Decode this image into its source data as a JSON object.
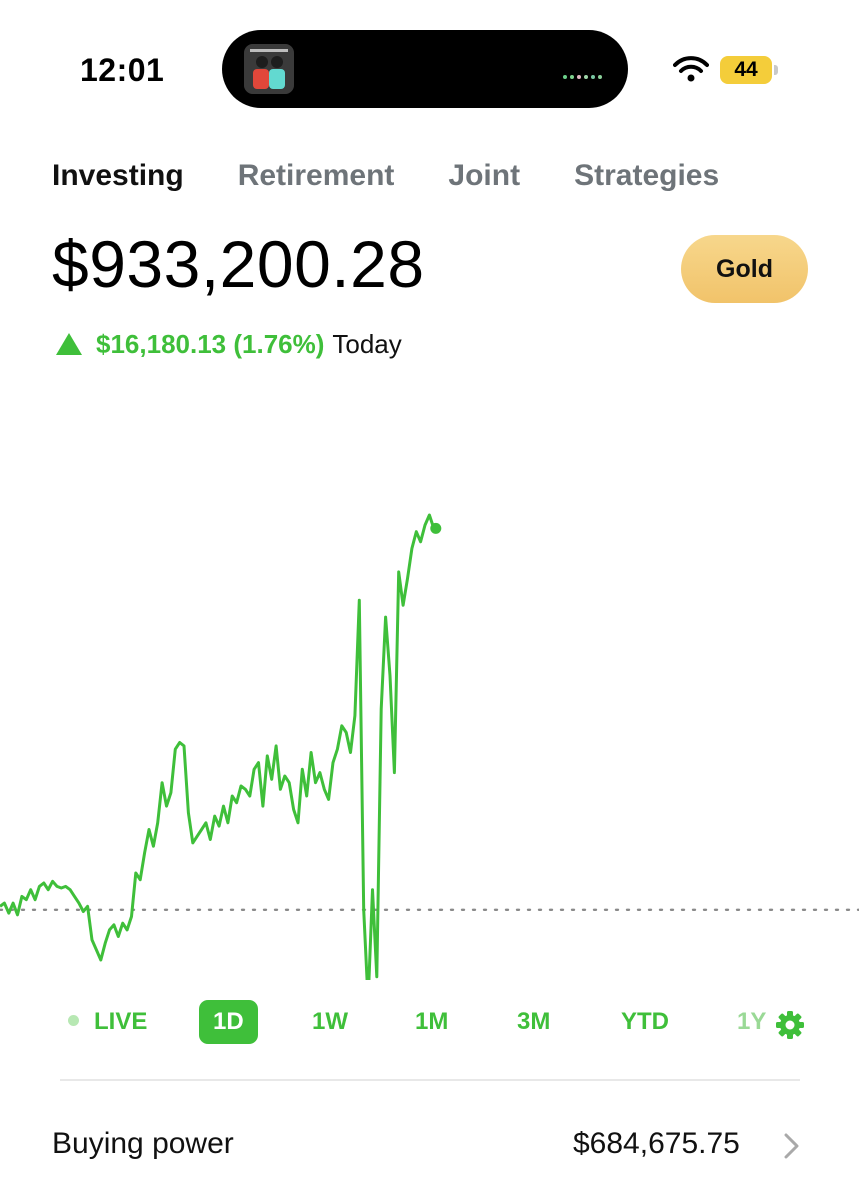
{
  "status_bar": {
    "time": "12:01",
    "battery": "44",
    "island_dot_colors": [
      "#6bd08a",
      "#7fd38f",
      "#e2b6c3",
      "#9fd6a9",
      "#78c7a2",
      "#8bd09a"
    ]
  },
  "tabs": [
    {
      "label": "Investing",
      "active": true
    },
    {
      "label": "Retirement",
      "active": false
    },
    {
      "label": "Joint",
      "active": false
    },
    {
      "label": "Strategies",
      "active": false
    }
  ],
  "portfolio": {
    "balance": "$933,200.28",
    "gold_label": "Gold",
    "change_amount": "$16,180.13 (1.76%)",
    "change_period": "Today",
    "change_direction": "up"
  },
  "colors": {
    "accent_green": "#3fbf3a",
    "gold": "#f1c36a",
    "baseline_dots": "#8a8a8a"
  },
  "chart_data": {
    "type": "line",
    "period": "1D",
    "baseline": 0,
    "y_range": [
      -36,
      239
    ],
    "values": [
      2,
      4,
      -2,
      4,
      -3,
      8,
      6,
      12,
      6,
      14,
      16,
      12,
      17,
      14,
      13,
      14,
      12,
      8,
      4,
      -1,
      2,
      -18,
      -24,
      -30,
      -20,
      -12,
      -9,
      -16,
      -8,
      -12,
      -4,
      22,
      18,
      34,
      48,
      38,
      52,
      76,
      62,
      70,
      96,
      100,
      98,
      58,
      40,
      44,
      48,
      52,
      42,
      56,
      50,
      62,
      52,
      68,
      64,
      74,
      72,
      68,
      84,
      88,
      62,
      92,
      78,
      98,
      72,
      80,
      76,
      60,
      52,
      84,
      68,
      94,
      76,
      82,
      72,
      66,
      88,
      96,
      110,
      106,
      94,
      116,
      185,
      0,
      -55,
      12,
      -40,
      120,
      175,
      140,
      82,
      202,
      182,
      198,
      216,
      226,
      220,
      230,
      236,
      228
    ],
    "x_span_fraction": 0.505
  },
  "ranges": [
    {
      "label": "LIVE",
      "active": false
    },
    {
      "label": "1D",
      "active": true
    },
    {
      "label": "1W",
      "active": false
    },
    {
      "label": "1M",
      "active": false
    },
    {
      "label": "3M",
      "active": false
    },
    {
      "label": "YTD",
      "active": false
    },
    {
      "label": "1Y",
      "active": false
    }
  ],
  "buying_power": {
    "label": "Buying power",
    "value": "$684,675.75"
  }
}
